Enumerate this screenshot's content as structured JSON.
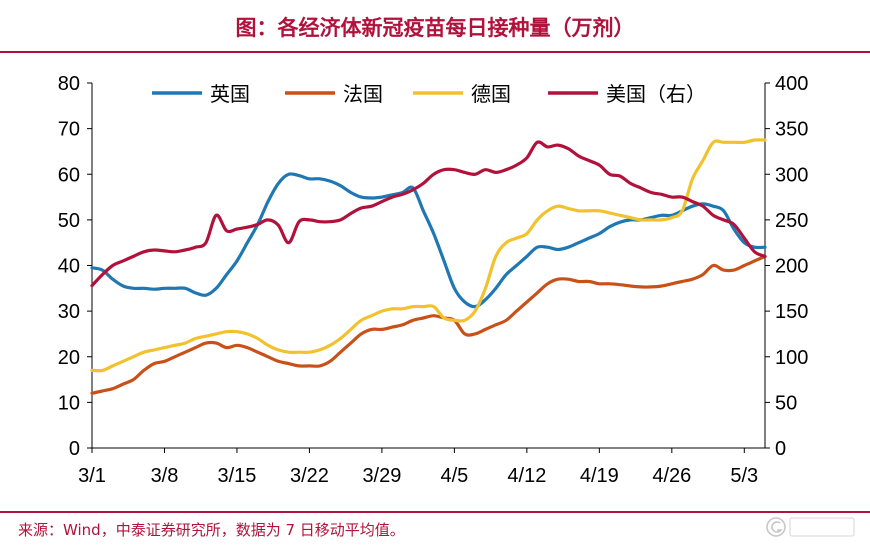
{
  "chart_data": {
    "type": "line",
    "title": "图：各经济体新冠疫苗每日接种量（万剂）",
    "source": "来源：Wind，中泰证券研究所，数据为 7 日移动平均值。",
    "x": [
      "3/1",
      "3/2",
      "3/3",
      "3/4",
      "3/5",
      "3/6",
      "3/7",
      "3/8",
      "3/9",
      "3/10",
      "3/11",
      "3/12",
      "3/13",
      "3/14",
      "3/15",
      "3/16",
      "3/17",
      "3/18",
      "3/19",
      "3/20",
      "3/21",
      "3/22",
      "3/23",
      "3/24",
      "3/25",
      "3/26",
      "3/27",
      "3/28",
      "3/29",
      "3/30",
      "3/31",
      "4/1",
      "4/2",
      "4/3",
      "4/4",
      "4/5",
      "4/6",
      "4/7",
      "4/8",
      "4/9",
      "4/10",
      "4/11",
      "4/12",
      "4/13",
      "4/14",
      "4/15",
      "4/16",
      "4/17",
      "4/18",
      "4/19",
      "4/20",
      "4/21",
      "4/22",
      "4/23",
      "4/24",
      "4/25",
      "4/26",
      "4/27",
      "4/28",
      "4/29",
      "4/30",
      "5/1",
      "5/2",
      "5/3",
      "5/4",
      "5/5"
    ],
    "x_tick_labels": [
      "3/1",
      "3/8",
      "3/15",
      "3/22",
      "3/29",
      "4/5",
      "4/12",
      "4/19",
      "4/26",
      "5/3"
    ],
    "y_left": {
      "min": 0,
      "max": 80,
      "ticks": [
        "0",
        "10",
        "20",
        "30",
        "40",
        "50",
        "60",
        "70",
        "80"
      ]
    },
    "y_right": {
      "min": 0,
      "max": 400,
      "ticks": [
        "0",
        "50",
        "100",
        "150",
        "200",
        "250",
        "300",
        "350",
        "400"
      ]
    },
    "legend_position": "top",
    "series": [
      {
        "name": "英国",
        "color": "#1f77b4",
        "axis": "left",
        "values": [
          39.5,
          39,
          37,
          35.5,
          35,
          35,
          34.8,
          35,
          35,
          35,
          34,
          33.5,
          35,
          38,
          41,
          45,
          49,
          54,
          58,
          60,
          59.7,
          59,
          59,
          58.5,
          57.5,
          56,
          55,
          54.8,
          55,
          55.5,
          56,
          57,
          52,
          47,
          41,
          35,
          32,
          31,
          32.5,
          35,
          38,
          40,
          42,
          44,
          44,
          43.5,
          44,
          45,
          46,
          47,
          48.5,
          49.5,
          50,
          50,
          50.5,
          51,
          51,
          52,
          53,
          53.5,
          53,
          52,
          48,
          45,
          44,
          44
        ]
      },
      {
        "name": "法国",
        "color": "#c8511a",
        "axis": "left",
        "values": [
          12,
          12.5,
          13,
          14,
          15,
          17,
          18.5,
          19,
          20,
          21,
          22,
          23,
          23,
          22,
          22.5,
          22,
          21,
          20,
          19,
          18.5,
          18,
          18,
          18,
          19,
          21,
          23,
          25,
          26,
          26,
          26.5,
          27,
          28,
          28.5,
          29,
          28.5,
          28,
          25,
          25,
          26,
          27,
          28,
          30,
          32,
          34,
          36,
          37,
          37,
          36.5,
          36.5,
          36,
          36,
          35.8,
          35.5,
          35.3,
          35.3,
          35.5,
          36,
          36.5,
          37,
          38,
          40,
          39,
          39,
          40,
          41,
          42
        ]
      },
      {
        "name": "德国",
        "color": "#f2c12e",
        "axis": "left",
        "values": [
          17,
          17,
          18,
          19,
          20,
          21,
          21.5,
          22,
          22.5,
          23,
          24,
          24.5,
          25,
          25.5,
          25.5,
          25,
          24,
          22.5,
          21.5,
          21,
          21,
          21,
          21.5,
          22.5,
          24,
          26,
          28,
          29,
          30,
          30.5,
          30.5,
          31,
          31,
          31,
          28.5,
          28,
          28,
          30,
          35,
          42,
          45,
          46,
          47,
          50,
          52,
          53,
          52.5,
          52,
          52,
          52,
          51.5,
          51,
          50.5,
          50,
          50,
          50,
          50.5,
          52,
          59,
          63,
          67,
          67,
          67,
          67,
          67.5,
          67.5
        ]
      },
      {
        "name": "美国（右）",
        "color": "#b0123c",
        "axis": "right",
        "values": [
          178,
          190,
          200,
          205,
          210,
          215,
          217,
          216,
          215,
          217,
          220,
          225,
          255,
          238,
          240,
          242,
          245,
          250,
          244,
          225,
          248,
          250,
          248,
          248,
          250,
          257,
          263,
          265,
          270,
          275,
          278,
          283,
          290,
          300,
          305,
          305,
          302,
          300,
          305,
          302,
          305,
          310,
          318,
          335,
          330,
          332,
          328,
          320,
          315,
          310,
          300,
          298,
          290,
          285,
          280,
          278,
          275,
          275,
          270,
          265,
          255,
          250,
          245,
          230,
          215,
          210
        ]
      }
    ]
  }
}
